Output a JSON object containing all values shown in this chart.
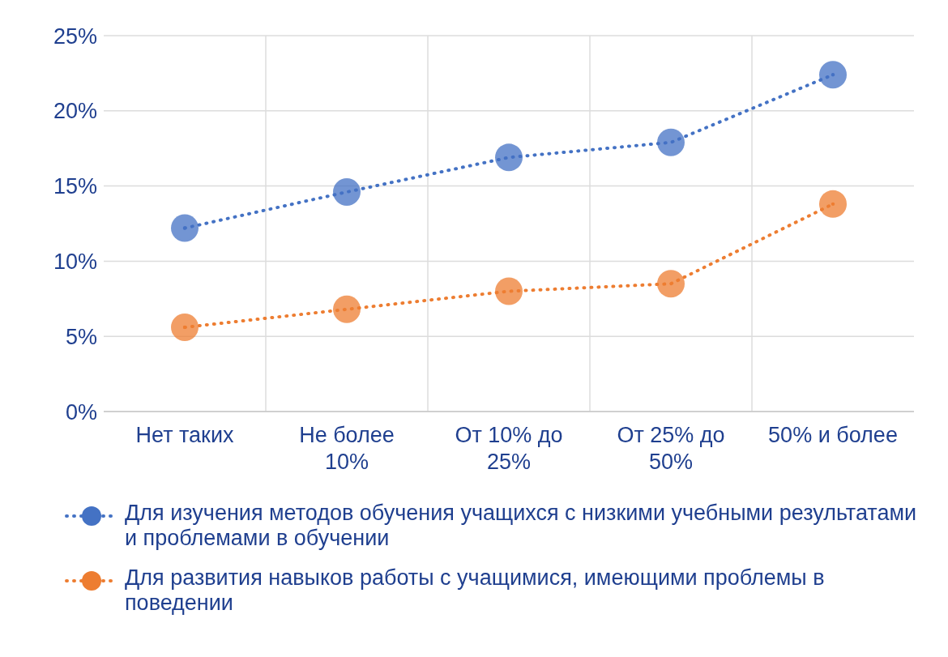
{
  "chart_data": {
    "type": "line",
    "categories": [
      "Нет таких",
      "Не более 10%",
      "От 10% до 25%",
      "От 25% до 50%",
      "50% и более"
    ],
    "series": [
      {
        "name": "Для изучения методов обучения учащихся с низкими учебными результатами и проблемами в обучении",
        "color": "#4472c4",
        "values": [
          12.2,
          14.6,
          16.9,
          17.9,
          22.4
        ]
      },
      {
        "name": "Для развития навыков работы с учащимися, имеющими проблемы в поведении",
        "color": "#ed7d31",
        "values": [
          5.6,
          6.8,
          8.0,
          8.5,
          13.8
        ]
      }
    ],
    "ylim": [
      0,
      25
    ],
    "yticks": [
      {
        "value": 0,
        "label": "0%"
      },
      {
        "value": 5,
        "label": "5%"
      },
      {
        "value": 10,
        "label": "10%"
      },
      {
        "value": 15,
        "label": "15%"
      },
      {
        "value": 20,
        "label": "20%"
      },
      {
        "value": 25,
        "label": "25%"
      }
    ],
    "grid": true,
    "legend": "bottom",
    "marker": "circle",
    "line_style": "dotted"
  }
}
